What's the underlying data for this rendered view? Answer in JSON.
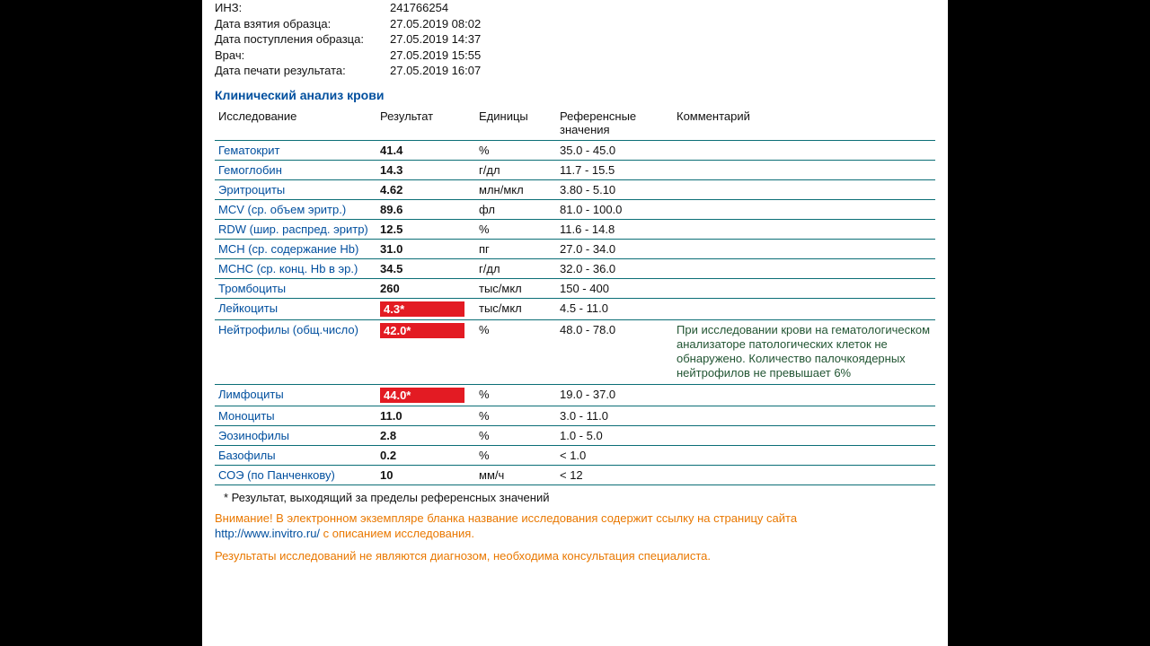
{
  "meta": {
    "rows": [
      {
        "label": "ИНЗ:",
        "value": "241766254"
      },
      {
        "label": "Дата взятия образца:",
        "value": "27.05.2019 08:02"
      },
      {
        "label": "Дата поступления образца:",
        "value": "27.05.2019 14:37"
      },
      {
        "label": "Врач:",
        "value": "27.05.2019 15:55"
      },
      {
        "label": "Дата печати результата:",
        "value": "27.05.2019 16:07"
      }
    ]
  },
  "section_title": "Клинический анализ крови",
  "table": {
    "headers": {
      "name": "Исследование",
      "result": "Результат",
      "unit": "Единицы",
      "ref": "Референсные значения",
      "comment": "Комментарий"
    },
    "rows": [
      {
        "name": "Гематокрит",
        "result": "41.4",
        "flag": false,
        "unit": "%",
        "ref": "35.0 - 45.0",
        "comment": ""
      },
      {
        "name": "Гемоглобин",
        "result": "14.3",
        "flag": false,
        "unit": "г/дл",
        "ref": "11.7 - 15.5",
        "comment": ""
      },
      {
        "name": "Эритроциты",
        "result": "4.62",
        "flag": false,
        "unit": "млн/мкл",
        "ref": "3.80 - 5.10",
        "comment": ""
      },
      {
        "name": "MCV (ср. объем эритр.)",
        "result": "89.6",
        "flag": false,
        "unit": "фл",
        "ref": "81.0 - 100.0",
        "comment": ""
      },
      {
        "name": "RDW (шир. распред. эритр)",
        "result": "12.5",
        "flag": false,
        "unit": "%",
        "ref": "11.6 - 14.8",
        "comment": ""
      },
      {
        "name": "MCH (ср. содержание Hb)",
        "result": "31.0",
        "flag": false,
        "unit": "пг",
        "ref": "27.0 - 34.0",
        "comment": ""
      },
      {
        "name": "MCHC (ср. конц. Hb в эр.)",
        "result": "34.5",
        "flag": false,
        "unit": "г/дл",
        "ref": "32.0 - 36.0",
        "comment": ""
      },
      {
        "name": "Тромбоциты",
        "result": "260",
        "flag": false,
        "unit": "тыс/мкл",
        "ref": "150 - 400",
        "comment": ""
      },
      {
        "name": "Лейкоциты",
        "result": "4.3*",
        "flag": true,
        "unit": "тыс/мкл",
        "ref": "4.5 - 11.0",
        "comment": ""
      },
      {
        "name": "Нейтрофилы (общ.число)",
        "result": "42.0*",
        "flag": true,
        "unit": "%",
        "ref": "48.0 - 78.0",
        "comment": "При исследовании крови на гематологическом анализаторе патологических клеток не обнаружено. Количество палочкоядерных нейтрофилов не превышает 6%"
      },
      {
        "name": "Лимфоциты",
        "result": "44.0*",
        "flag": true,
        "unit": "%",
        "ref": "19.0 - 37.0",
        "comment": ""
      },
      {
        "name": "Моноциты",
        "result": "11.0",
        "flag": false,
        "unit": "%",
        "ref": "3.0 - 11.0",
        "comment": ""
      },
      {
        "name": "Эозинофилы",
        "result": "2.8",
        "flag": false,
        "unit": "%",
        "ref": "1.0 - 5.0",
        "comment": ""
      },
      {
        "name": "Базофилы",
        "result": "0.2",
        "flag": false,
        "unit": "%",
        "ref": "< 1.0",
        "comment": ""
      },
      {
        "name": "СОЭ (по Панченкову)",
        "result": "10",
        "flag": false,
        "unit": "мм/ч",
        "ref": "< 12",
        "comment": ""
      }
    ]
  },
  "footnote": "* Результат, выходящий за пределы референсных значений",
  "warning": {
    "lead": "Внимание!",
    "text": " В электронном экземпляре бланка название исследования содержит ссылку на страницу сайта ",
    "link": "http://www.invitro.ru/",
    "tail": " с описанием исследования."
  },
  "warning2": "Результаты исследований не являются диагнозом, необходима консультация специалиста.",
  "colors": {
    "brand_blue": "#004f9e",
    "rule_teal": "#0b6e76",
    "flag_red": "#e31b23",
    "warn_orange": "#e97800",
    "comment_text": "#253"
  }
}
